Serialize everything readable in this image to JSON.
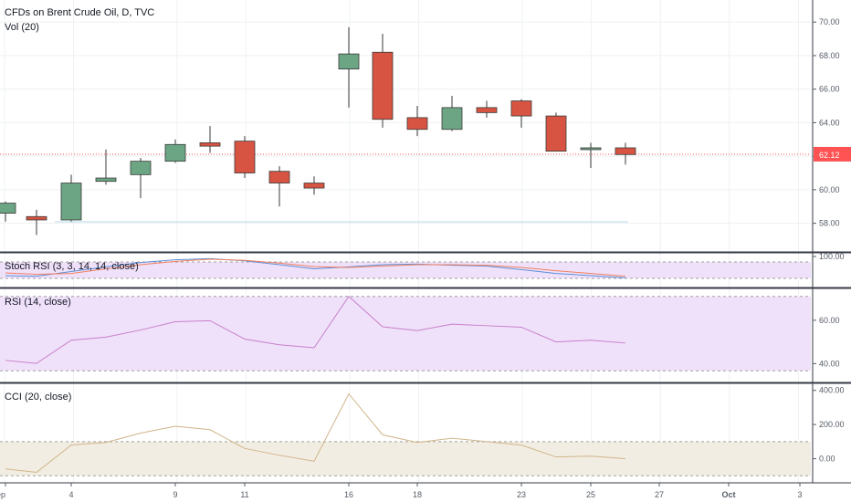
{
  "legend": {
    "title": "CFDs on Brent Crude Oil, D, TVC",
    "volume": "Vol (20)"
  },
  "colors": {
    "up": "#6ba583",
    "down": "#d75442",
    "price_line": "#ff5252",
    "band_fill": "#f0e1fa",
    "rsi_line": "#c67fc9",
    "cci_line": "#d0b58a",
    "cci_band": "#f2ede2",
    "stoch_k": "#5b8fd8",
    "stoch_d": "#f08060"
  },
  "current_price": "62.12",
  "chart_data": [
    {
      "type": "candlestick",
      "title": "CFDs on Brent Crude Oil, D, TVC",
      "x": [
        "ep",
        "4",
        "9",
        "11",
        "16",
        "18",
        "23",
        "25",
        "27",
        "Oct",
        "3"
      ],
      "ylim": [
        57.0,
        70.5
      ],
      "yticks": [
        "70.00",
        "68.00",
        "66.00",
        "64.00",
        "62.00",
        "60.00",
        "58.00"
      ],
      "last_price": 62.12,
      "candles": [
        {
          "o": 58.6,
          "h": 59.3,
          "l": 58.1,
          "c": 59.2
        },
        {
          "o": 58.4,
          "h": 58.8,
          "l": 57.3,
          "c": 58.2
        },
        {
          "o": 58.2,
          "h": 60.9,
          "l": 58.1,
          "c": 60.4
        },
        {
          "o": 60.5,
          "h": 62.4,
          "l": 60.3,
          "c": 60.7
        },
        {
          "o": 60.9,
          "h": 61.9,
          "l": 59.5,
          "c": 61.7
        },
        {
          "o": 61.7,
          "h": 63.0,
          "l": 61.6,
          "c": 62.7
        },
        {
          "o": 62.8,
          "h": 63.8,
          "l": 62.2,
          "c": 62.6
        },
        {
          "o": 62.9,
          "h": 63.2,
          "l": 60.7,
          "c": 61.0
        },
        {
          "o": 61.1,
          "h": 61.4,
          "l": 59.0,
          "c": 60.4
        },
        {
          "o": 60.4,
          "h": 60.8,
          "l": 59.7,
          "c": 60.1
        },
        {
          "o": 67.2,
          "h": 69.7,
          "l": 64.9,
          "c": 68.1
        },
        {
          "o": 68.2,
          "h": 69.3,
          "l": 63.7,
          "c": 64.2
        },
        {
          "o": 64.3,
          "h": 65.0,
          "l": 63.2,
          "c": 63.6
        },
        {
          "o": 63.6,
          "h": 65.6,
          "l": 63.5,
          "c": 64.9
        },
        {
          "o": 64.9,
          "h": 65.3,
          "l": 64.3,
          "c": 64.6
        },
        {
          "o": 65.3,
          "h": 65.4,
          "l": 63.7,
          "c": 64.4
        },
        {
          "o": 64.4,
          "h": 64.6,
          "l": 62.3,
          "c": 62.3
        },
        {
          "o": 62.4,
          "h": 62.8,
          "l": 61.3,
          "c": 62.5
        },
        {
          "o": 62.5,
          "h": 62.8,
          "l": 61.5,
          "c": 62.1
        }
      ]
    },
    {
      "type": "line",
      "title": "Stoch RSI (3, 3, 14, 14, close)",
      "ylim": [
        0,
        100
      ],
      "yticks": [
        "100.00"
      ],
      "band": [
        20,
        80
      ],
      "series": [
        {
          "values": [
            30,
            28,
            45,
            62,
            78,
            88,
            92,
            84,
            70,
            55,
            62,
            70,
            72,
            68,
            65,
            52,
            38,
            30,
            22
          ]
        },
        {
          "values": [
            40,
            35,
            38,
            55,
            70,
            82,
            90,
            86,
            76,
            63,
            60,
            65,
            70,
            70,
            68,
            60,
            48,
            38,
            28
          ]
        }
      ]
    },
    {
      "type": "line",
      "title": "RSI (14, close)",
      "ylim": [
        33,
        73
      ],
      "yticks": [
        "60.00",
        "40.00"
      ],
      "band": [
        36.7,
        71
      ],
      "series": [
        {
          "values": [
            41.5,
            40.1,
            50.8,
            52.2,
            55.5,
            59.3,
            59.8,
            51.3,
            48.7,
            47.3,
            71.0,
            57.0,
            55.2,
            58.2,
            57.5,
            56.8,
            50.0,
            50.8,
            49.5
          ]
        }
      ]
    },
    {
      "type": "line",
      "title": "CCI (20, close)",
      "ylim": [
        -120,
        420
      ],
      "yticks": [
        "400.00",
        "200.00",
        "0.00"
      ],
      "band": [
        -100,
        100
      ],
      "series": [
        {
          "values": [
            -60,
            -80,
            80,
            95,
            150,
            190,
            170,
            60,
            20,
            -15,
            380,
            140,
            95,
            120,
            100,
            80,
            10,
            15,
            0
          ]
        }
      ]
    }
  ]
}
